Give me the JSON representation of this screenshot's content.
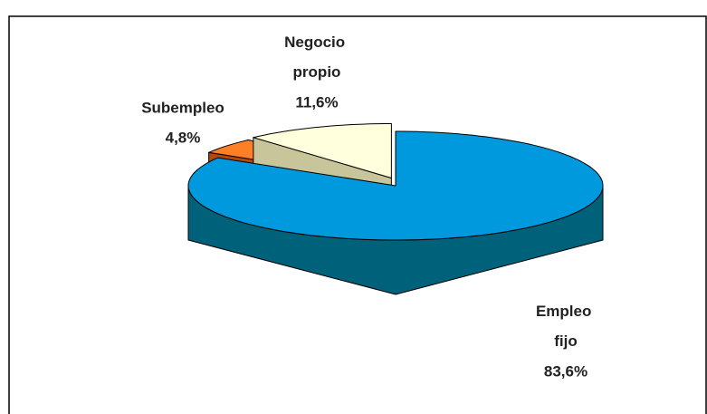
{
  "chart_data": {
    "type": "pie3d",
    "categories": [
      "Empleo fijo",
      "Subempleo",
      "Negocio propio"
    ],
    "values": [
      83.6,
      4.8,
      11.6
    ],
    "value_labels": [
      "83,6%",
      "4,8%",
      "11,6%"
    ],
    "colors": [
      "#0099dd",
      "#ff7f27",
      "#ffffdd"
    ],
    "side_colors": [
      "#00627a",
      "#b3480f",
      "#c9c59a"
    ],
    "exploded": [
      false,
      true,
      true
    ]
  }
}
